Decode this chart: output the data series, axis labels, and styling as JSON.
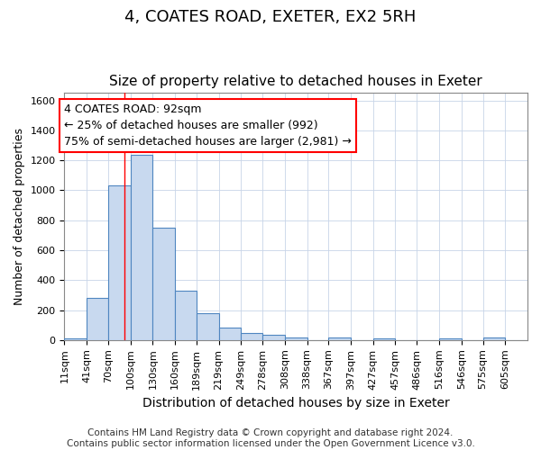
{
  "title": "4, COATES ROAD, EXETER, EX2 5RH",
  "subtitle": "Size of property relative to detached houses in Exeter",
  "xlabel": "Distribution of detached houses by size in Exeter",
  "ylabel": "Number of detached properties",
  "bin_labels": [
    "11sqm",
    "41sqm",
    "70sqm",
    "100sqm",
    "130sqm",
    "160sqm",
    "189sqm",
    "219sqm",
    "249sqm",
    "278sqm",
    "308sqm",
    "338sqm",
    "367sqm",
    "397sqm",
    "427sqm",
    "457sqm",
    "486sqm",
    "516sqm",
    "546sqm",
    "575sqm",
    "605sqm"
  ],
  "bin_edges": [
    11,
    41,
    70,
    100,
    130,
    160,
    189,
    219,
    249,
    278,
    308,
    338,
    367,
    397,
    427,
    457,
    486,
    516,
    546,
    575,
    605
  ],
  "bar_heights": [
    10,
    280,
    1030,
    1240,
    750,
    330,
    180,
    85,
    45,
    35,
    18,
    0,
    18,
    0,
    10,
    0,
    0,
    10,
    0,
    15,
    0
  ],
  "bar_color": "#c8d9ef",
  "bar_edge_color": "#4f86c0",
  "bar_linewidth": 0.8,
  "grid_color": "#c8d4e8",
  "bg_color": "#ffffff",
  "red_line_x": 92,
  "ylim": [
    0,
    1650
  ],
  "yticks": [
    0,
    200,
    400,
    600,
    800,
    1000,
    1200,
    1400,
    1600
  ],
  "annotation_line1": "4 COATES ROAD: 92sqm",
  "annotation_line2": "← 25% of detached houses are smaller (992)",
  "annotation_line3": "75% of semi-detached houses are larger (2,981) →",
  "annotation_box_color": "white",
  "annotation_border_color": "red",
  "footer_text": "Contains HM Land Registry data © Crown copyright and database right 2024.\nContains public sector information licensed under the Open Government Licence v3.0.",
  "title_fontsize": 13,
  "subtitle_fontsize": 11,
  "xlabel_fontsize": 10,
  "ylabel_fontsize": 9,
  "tick_fontsize": 8,
  "annotation_fontsize": 9,
  "footer_fontsize": 7.5
}
